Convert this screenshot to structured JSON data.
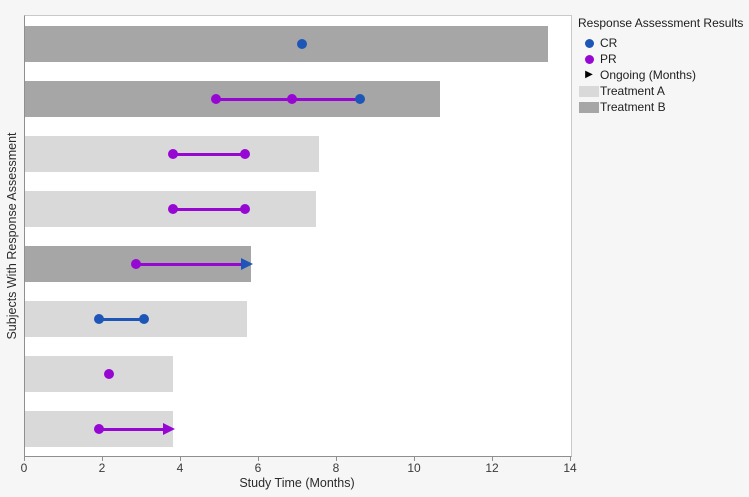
{
  "figure": {
    "background": "#F6F6F6",
    "plot_background": "#FFFFFF"
  },
  "legend": {
    "title": "Response Assessment Results",
    "items": [
      {
        "label": "CR",
        "marker": "circle",
        "color": "#1E56B8"
      },
      {
        "label": "PR",
        "marker": "circle",
        "color": "#9707D3"
      },
      {
        "label": "Ongoing (Months)",
        "marker": "arrow-right",
        "color": "#000000"
      },
      {
        "label": "Treatment A",
        "marker": "swatch",
        "color": "#D9D9D9"
      },
      {
        "label": "Treatment B",
        "marker": "swatch",
        "color": "#A6A6A6"
      }
    ]
  },
  "chart_data": {
    "type": "bar",
    "orientation": "horizontal",
    "title": "",
    "xlabel": "Study Time (Months)",
    "ylabel": "Subjects With Response Assessment",
    "xlim": [
      0,
      14
    ],
    "xticks": [
      0,
      2,
      4,
      6,
      8,
      10,
      12,
      14
    ],
    "grid": false,
    "legend_position": "right",
    "colors": {
      "CR": "#1E56B8",
      "PR": "#9707D3",
      "ongoing": "#000000",
      "treatment_a": "#D9D9D9",
      "treatment_b": "#A6A6A6"
    },
    "subjects": [
      {
        "treatment": "B",
        "bar_end": 13.4,
        "markers": [
          {
            "type": "CR",
            "x": 7.1
          }
        ]
      },
      {
        "treatment": "B",
        "bar_end": 10.65,
        "segments": [
          {
            "x1": 4.9,
            "x2": 8.6,
            "color": "PR"
          }
        ],
        "markers": [
          {
            "type": "PR",
            "x": 4.9
          },
          {
            "type": "PR",
            "x": 6.85
          },
          {
            "type": "CR",
            "x": 8.6
          }
        ]
      },
      {
        "treatment": "A",
        "bar_end": 7.55,
        "segments": [
          {
            "x1": 3.8,
            "x2": 5.65,
            "color": "PR"
          }
        ],
        "markers": [
          {
            "type": "PR",
            "x": 3.8
          },
          {
            "type": "PR",
            "x": 5.65
          }
        ]
      },
      {
        "treatment": "A",
        "bar_end": 7.45,
        "segments": [
          {
            "x1": 3.8,
            "x2": 5.65,
            "color": "PR"
          }
        ],
        "markers": [
          {
            "type": "PR",
            "x": 3.8
          },
          {
            "type": "PR",
            "x": 5.65
          }
        ]
      },
      {
        "treatment": "B",
        "bar_end": 5.8,
        "arrow": {
          "x1": 2.85,
          "x2": 5.8,
          "line": "PR",
          "head": "CR"
        },
        "markers": [
          {
            "type": "PR",
            "x": 2.85
          }
        ]
      },
      {
        "treatment": "A",
        "bar_end": 5.7,
        "segments": [
          {
            "x1": 1.9,
            "x2": 3.05,
            "color": "CR"
          }
        ],
        "markers": [
          {
            "type": "CR",
            "x": 1.9
          },
          {
            "type": "CR",
            "x": 3.05
          }
        ]
      },
      {
        "treatment": "A",
        "bar_end": 3.8,
        "markers": [
          {
            "type": "PR",
            "x": 2.15
          }
        ]
      },
      {
        "treatment": "A",
        "bar_end": 3.8,
        "arrow": {
          "x1": 1.9,
          "x2": 3.8,
          "line": "PR",
          "head": "PR"
        },
        "markers": [
          {
            "type": "PR",
            "x": 1.9
          }
        ]
      }
    ]
  }
}
